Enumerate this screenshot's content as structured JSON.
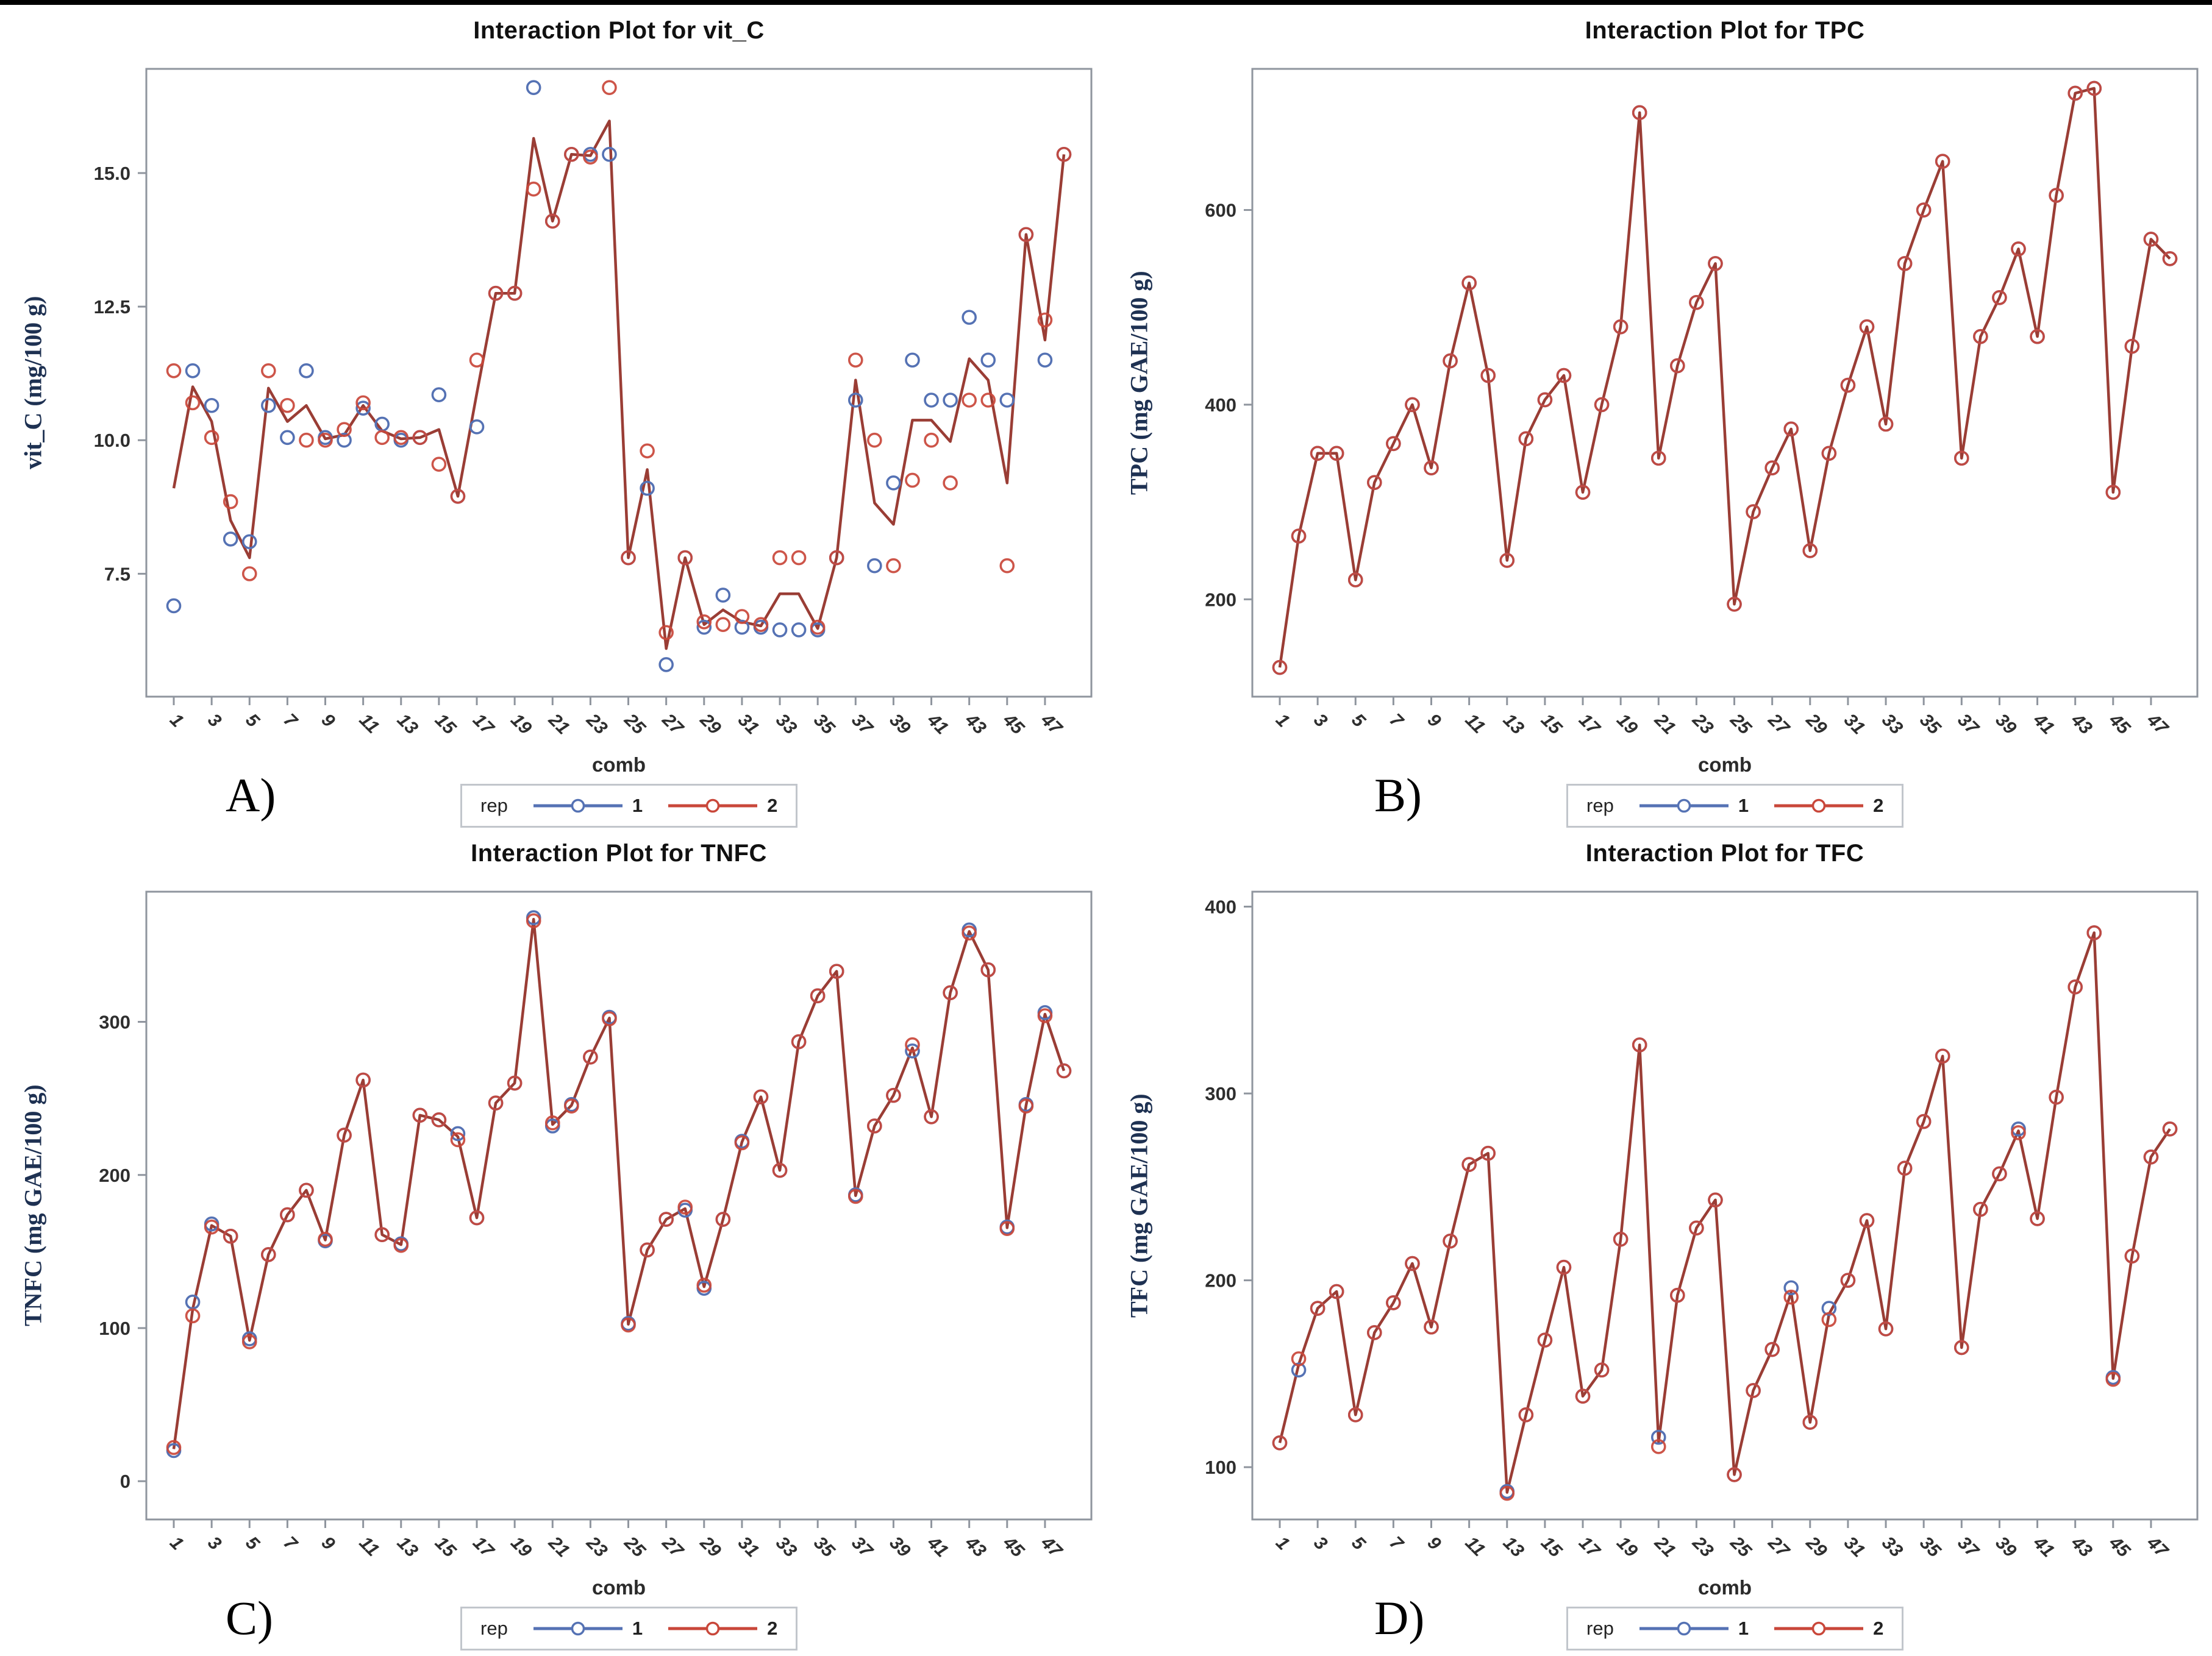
{
  "colors": {
    "rep1": "#5572b4",
    "rep2": "#c9473a",
    "mean_line": "#9a3d35",
    "frame": "#8f959e",
    "tick_text": "#2e2e2e",
    "title_text": "#111111",
    "ylabel_text": "#1e3152",
    "background": "#ffffff"
  },
  "legend": {
    "group_label": "rep",
    "entries": [
      {
        "label": "1",
        "color": "#5572b4"
      },
      {
        "label": "2",
        "color": "#c9473a"
      }
    ]
  },
  "chart_data": [
    {
      "id": "A",
      "panel_letter": "A)",
      "type": "line",
      "title": "Interaction Plot for vit_C",
      "xlabel": "comb",
      "ylabel": "vit_C (mg/100 g)",
      "legend": {
        "group_label": "rep",
        "entries": [
          "1",
          "2"
        ]
      },
      "x_tick_labels": [
        "1",
        "3",
        "5",
        "7",
        "9",
        "11",
        "13",
        "15",
        "17",
        "19",
        "21",
        "23",
        "25",
        "27",
        "29",
        "31",
        "33",
        "35",
        "37",
        "39",
        "41",
        "43",
        "45",
        "47"
      ],
      "n_points": 48,
      "ylim": [
        5.2,
        16.95
      ],
      "yticks": [
        7.5,
        10.0,
        12.5,
        15.0
      ],
      "ytick_labels": [
        "7.5",
        "10.0",
        "12.5",
        "15.0"
      ],
      "line_through": "mean of rep1 and rep2",
      "series": [
        {
          "name": "1",
          "values": [
            6.9,
            11.3,
            10.65,
            8.15,
            8.1,
            10.65,
            10.05,
            11.3,
            10.05,
            10.0,
            10.6,
            10.3,
            10.0,
            10.05,
            10.85,
            8.95,
            10.25,
            12.75,
            12.75,
            16.6,
            14.1,
            15.35,
            15.35,
            15.35,
            7.8,
            9.1,
            5.8,
            7.8,
            6.5,
            7.1,
            6.5,
            6.5,
            6.45,
            6.45,
            6.45,
            7.8,
            10.75,
            7.65,
            9.2,
            11.5,
            10.75,
            10.75,
            12.3,
            11.5,
            10.75,
            13.85,
            11.5,
            15.35
          ]
        },
        {
          "name": "2",
          "values": [
            11.3,
            10.7,
            10.05,
            8.85,
            7.5,
            11.3,
            10.65,
            10.0,
            10.0,
            10.2,
            10.7,
            10.05,
            10.05,
            10.05,
            9.55,
            8.95,
            11.5,
            12.75,
            12.75,
            14.7,
            14.1,
            15.35,
            15.3,
            16.6,
            7.8,
            9.8,
            6.4,
            7.8,
            6.6,
            6.55,
            6.7,
            6.55,
            7.8,
            7.8,
            6.5,
            7.8,
            11.5,
            10.0,
            7.65,
            9.25,
            10.0,
            9.2,
            10.75,
            10.75,
            7.65,
            13.85,
            12.25,
            15.35
          ]
        }
      ]
    },
    {
      "id": "B",
      "panel_letter": "B)",
      "type": "line",
      "title": "Interaction Plot for TPC",
      "xlabel": "comb",
      "ylabel": "TPC (mg GAE/100 g)",
      "legend": {
        "group_label": "rep",
        "entries": [
          "1",
          "2"
        ]
      },
      "x_tick_labels": [
        "1",
        "3",
        "5",
        "7",
        "9",
        "11",
        "13",
        "15",
        "17",
        "19",
        "21",
        "23",
        "25",
        "27",
        "29",
        "31",
        "33",
        "35",
        "37",
        "39",
        "41",
        "43",
        "45",
        "47"
      ],
      "n_points": 48,
      "ylim": [
        100,
        745
      ],
      "yticks": [
        200,
        400,
        600
      ],
      "ytick_labels": [
        "200",
        "400",
        "600"
      ],
      "line_through": "mean of rep1 and rep2",
      "series": [
        {
          "name": "1",
          "values": [
            130,
            265,
            350,
            350,
            220,
            320,
            360,
            400,
            335,
            445,
            525,
            430,
            240,
            365,
            405,
            430,
            310,
            400,
            480,
            700,
            345,
            440,
            505,
            545,
            195,
            290,
            335,
            375,
            250,
            350,
            420,
            480,
            380,
            545,
            600,
            650,
            345,
            470,
            510,
            560,
            470,
            615,
            720,
            725,
            310,
            460,
            570,
            550
          ]
        },
        {
          "name": "2",
          "values": [
            130,
            265,
            350,
            350,
            220,
            320,
            360,
            400,
            335,
            445,
            525,
            430,
            240,
            365,
            405,
            430,
            310,
            400,
            480,
            700,
            345,
            440,
            505,
            545,
            195,
            290,
            335,
            375,
            250,
            350,
            420,
            480,
            380,
            545,
            600,
            650,
            345,
            470,
            510,
            560,
            470,
            615,
            720,
            725,
            310,
            460,
            570,
            550
          ]
        }
      ]
    },
    {
      "id": "C",
      "panel_letter": "C)",
      "type": "line",
      "title": "Interaction Plot for TNFC",
      "xlabel": "comb",
      "ylabel": "TNFC (mg GAE/100 g)",
      "legend": {
        "group_label": "rep",
        "entries": [
          "1",
          "2"
        ]
      },
      "x_tick_labels": [
        "1",
        "3",
        "5",
        "7",
        "9",
        "11",
        "13",
        "15",
        "17",
        "19",
        "21",
        "23",
        "25",
        "27",
        "29",
        "31",
        "33",
        "35",
        "37",
        "39",
        "41",
        "43",
        "45",
        "47"
      ],
      "n_points": 48,
      "ylim": [
        -25,
        385
      ],
      "yticks": [
        0,
        100,
        200,
        300
      ],
      "ytick_labels": [
        "0",
        "100",
        "200",
        "300"
      ],
      "line_through": "mean of rep1 and rep2",
      "series": [
        {
          "name": "1",
          "values": [
            20,
            117,
            168,
            160,
            93,
            148,
            174,
            190,
            157,
            226,
            262,
            161,
            155,
            239,
            236,
            227,
            172,
            247,
            260,
            368,
            232,
            246,
            277,
            303,
            103,
            151,
            171,
            177,
            126,
            171,
            222,
            251,
            203,
            287,
            317,
            333,
            187,
            232,
            252,
            281,
            238,
            319,
            360,
            334,
            166,
            246,
            306,
            268
          ]
        },
        {
          "name": "2",
          "values": [
            22,
            108,
            166,
            160,
            91,
            148,
            174,
            190,
            158,
            226,
            262,
            161,
            154,
            239,
            236,
            223,
            172,
            247,
            260,
            366,
            234,
            245,
            277,
            302,
            102,
            151,
            171,
            179,
            128,
            171,
            221,
            251,
            203,
            287,
            317,
            333,
            186,
            232,
            252,
            285,
            238,
            319,
            358,
            334,
            165,
            245,
            304,
            268
          ]
        }
      ]
    },
    {
      "id": "D",
      "panel_letter": "D)",
      "type": "line",
      "title": "Interaction Plot for TFC",
      "xlabel": "comb",
      "ylabel": "TFC (mg GAE/100 g)",
      "legend": {
        "group_label": "rep",
        "entries": [
          "1",
          "2"
        ]
      },
      "x_tick_labels": [
        "1",
        "3",
        "5",
        "7",
        "9",
        "11",
        "13",
        "15",
        "17",
        "19",
        "21",
        "23",
        "25",
        "27",
        "29",
        "31",
        "33",
        "35",
        "37",
        "39",
        "41",
        "43",
        "45",
        "47"
      ],
      "n_points": 48,
      "ylim": [
        72,
        408
      ],
      "yticks": [
        100,
        200,
        300,
        400
      ],
      "ytick_labels": [
        "100",
        "200",
        "300",
        "400"
      ],
      "line_through": "mean of rep1 and rep2",
      "series": [
        {
          "name": "1",
          "values": [
            113,
            152,
            185,
            194,
            128,
            172,
            188,
            209,
            175,
            221,
            262,
            268,
            87,
            128,
            168,
            207,
            138,
            152,
            222,
            326,
            116,
            192,
            228,
            243,
            96,
            141,
            163,
            196,
            124,
            185,
            200,
            232,
            174,
            260,
            285,
            320,
            164,
            238,
            257,
            281,
            233,
            298,
            357,
            386,
            148,
            213,
            266,
            281
          ]
        },
        {
          "name": "2",
          "values": [
            113,
            158,
            185,
            194,
            128,
            172,
            188,
            209,
            175,
            221,
            262,
            268,
            86,
            128,
            168,
            207,
            138,
            152,
            222,
            326,
            111,
            192,
            228,
            243,
            96,
            141,
            163,
            191,
            124,
            179,
            200,
            232,
            174,
            260,
            285,
            320,
            164,
            238,
            257,
            279,
            233,
            298,
            357,
            386,
            147,
            213,
            266,
            281
          ]
        }
      ]
    }
  ]
}
